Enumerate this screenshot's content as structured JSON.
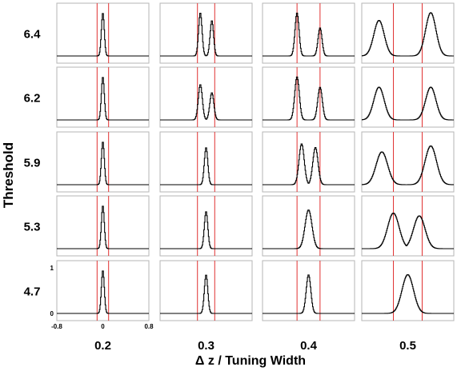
{
  "chart_data": {
    "type": "line",
    "layout": "5x4 small-multiples grid of histogram step curves",
    "ylabel": "Threshold",
    "xlabel": "Δ z / Tuning Width",
    "row_labels": [
      "6.4",
      "6.2",
      "5.9",
      "5.3",
      "4.7"
    ],
    "col_labels": [
      "0.2",
      "0.3",
      "0.4",
      "0.5"
    ],
    "xlim": [
      -0.8,
      0.8
    ],
    "ylim": [
      0,
      1
    ],
    "x_ticks": [
      "-0.8",
      "0",
      "0.8"
    ],
    "y_ticks": [
      "0",
      "1"
    ],
    "curve_color": "#000000",
    "marker_line_color": "#e03030",
    "vertical_markers_note": "two red vertical lines per panel at x = ±(column value)/2",
    "panels": [
      {
        "row": "6.4",
        "col": "0.2",
        "peaks": [
          {
            "center": 0.0,
            "width": 0.025,
            "height": 0.95
          }
        ]
      },
      {
        "row": "6.4",
        "col": "0.3",
        "peaks": [
          {
            "center": -0.1,
            "width": 0.03,
            "height": 0.95
          },
          {
            "center": 0.1,
            "width": 0.03,
            "height": 0.78
          }
        ]
      },
      {
        "row": "6.4",
        "col": "0.4",
        "peaks": [
          {
            "center": -0.2,
            "width": 0.035,
            "height": 0.95
          },
          {
            "center": 0.2,
            "width": 0.035,
            "height": 0.62
          }
        ]
      },
      {
        "row": "6.4",
        "col": "0.5",
        "peaks": [
          {
            "center": -0.5,
            "width": 0.09,
            "height": 0.78
          },
          {
            "center": 0.4,
            "width": 0.09,
            "height": 0.95
          }
        ]
      },
      {
        "row": "6.2",
        "col": "0.2",
        "peaks": [
          {
            "center": 0.0,
            "width": 0.025,
            "height": 0.95
          }
        ]
      },
      {
        "row": "6.2",
        "col": "0.3",
        "peaks": [
          {
            "center": -0.1,
            "width": 0.035,
            "height": 0.78
          },
          {
            "center": 0.1,
            "width": 0.035,
            "height": 0.6
          }
        ]
      },
      {
        "row": "6.2",
        "col": "0.4",
        "peaks": [
          {
            "center": -0.2,
            "width": 0.04,
            "height": 0.95
          },
          {
            "center": 0.2,
            "width": 0.04,
            "height": 0.72
          }
        ]
      },
      {
        "row": "6.2",
        "col": "0.5",
        "peaks": [
          {
            "center": -0.5,
            "width": 0.09,
            "height": 0.72
          },
          {
            "center": 0.4,
            "width": 0.09,
            "height": 0.72
          }
        ]
      },
      {
        "row": "5.9",
        "col": "0.2",
        "peaks": [
          {
            "center": 0.0,
            "width": 0.025,
            "height": 0.95
          }
        ]
      },
      {
        "row": "5.9",
        "col": "0.3",
        "peaks": [
          {
            "center": 0.0,
            "width": 0.03,
            "height": 0.82
          }
        ]
      },
      {
        "row": "5.9",
        "col": "0.4",
        "peaks": [
          {
            "center": -0.12,
            "width": 0.045,
            "height": 0.9
          },
          {
            "center": 0.12,
            "width": 0.045,
            "height": 0.82
          }
        ]
      },
      {
        "row": "5.9",
        "col": "0.5",
        "peaks": [
          {
            "center": -0.45,
            "width": 0.1,
            "height": 0.72
          },
          {
            "center": 0.4,
            "width": 0.1,
            "height": 0.85
          }
        ]
      },
      {
        "row": "5.3",
        "col": "0.2",
        "peaks": [
          {
            "center": 0.0,
            "width": 0.025,
            "height": 0.95
          }
        ]
      },
      {
        "row": "5.3",
        "col": "0.3",
        "peaks": [
          {
            "center": 0.0,
            "width": 0.03,
            "height": 0.82
          }
        ]
      },
      {
        "row": "5.3",
        "col": "0.4",
        "peaks": [
          {
            "center": 0.0,
            "width": 0.06,
            "height": 0.85
          }
        ]
      },
      {
        "row": "5.3",
        "col": "0.5",
        "peaks": [
          {
            "center": -0.25,
            "width": 0.1,
            "height": 0.78
          },
          {
            "center": 0.2,
            "width": 0.1,
            "height": 0.72
          }
        ]
      },
      {
        "row": "4.7",
        "col": "0.2",
        "peaks": [
          {
            "center": 0.0,
            "width": 0.025,
            "height": 0.95
          }
        ]
      },
      {
        "row": "4.7",
        "col": "0.3",
        "peaks": [
          {
            "center": 0.0,
            "width": 0.03,
            "height": 0.85
          }
        ]
      },
      {
        "row": "4.7",
        "col": "0.4",
        "peaks": [
          {
            "center": 0.0,
            "width": 0.04,
            "height": 0.85
          }
        ]
      },
      {
        "row": "4.7",
        "col": "0.5",
        "peaks": [
          {
            "center": 0.0,
            "width": 0.1,
            "height": 0.85
          }
        ]
      }
    ]
  }
}
